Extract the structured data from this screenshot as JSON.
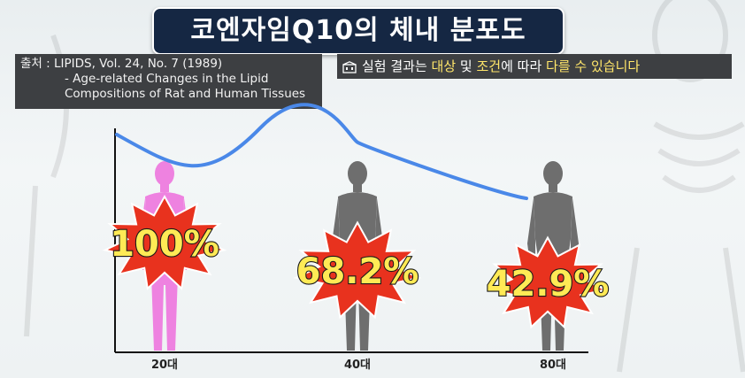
{
  "title": "코엔자임Q10의 체내 분포도",
  "source": {
    "label": "출처",
    "line1": "LIPIDS, Vol. 24, No. 7 (1989)",
    "line2": "- Age-related Changes in the Lipid",
    "line3": "Compositions of Rat and Human Tissues"
  },
  "note": {
    "icon": "building-icon",
    "p1": "실험 결과는 ",
    "h1": "대상",
    "p2": " 및 ",
    "h2": "조건",
    "p3": "에 따라 ",
    "h3": "다를 수 있습니다"
  },
  "chart_data": {
    "type": "line",
    "x": [
      "20대",
      "40대",
      "80대"
    ],
    "series": [
      {
        "values": [
          100,
          68.2,
          42.9
        ]
      }
    ],
    "data_labels": [
      "100%",
      "68.2%",
      "42.9%"
    ],
    "colors": {
      "line": "#4a88e8",
      "figure_20": "#ee82e0",
      "figure_other": "#6e6e6e",
      "burst_fill": "#e8321e",
      "label_fill": "#ffea55"
    }
  }
}
